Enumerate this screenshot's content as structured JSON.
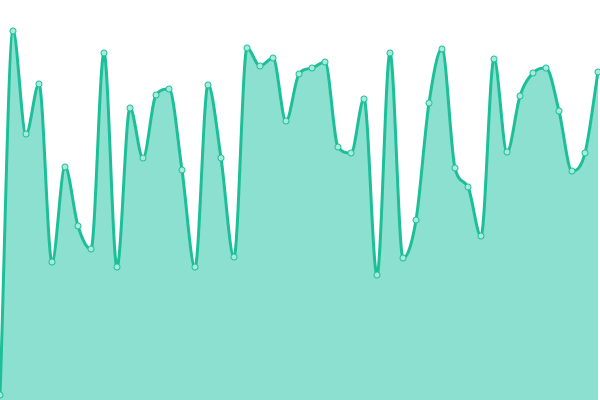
{
  "chart_data": {
    "type": "area",
    "title": "",
    "xlabel": "",
    "ylabel": "",
    "x": [
      0,
      1,
      2,
      3,
      4,
      5,
      6,
      7,
      8,
      9,
      10,
      11,
      12,
      13,
      14,
      15,
      16,
      17,
      18,
      19,
      20,
      21,
      22,
      23,
      24,
      25,
      26,
      27,
      28,
      29,
      30,
      31,
      32,
      33,
      34,
      35,
      36,
      37,
      38,
      39,
      40,
      41,
      42,
      43,
      44,
      45,
      46
    ],
    "values": [
      5,
      369,
      266,
      316,
      138,
      233,
      174,
      151,
      347,
      133,
      292,
      242,
      305,
      311,
      230,
      133,
      315,
      242,
      143,
      352,
      334,
      342,
      279,
      326,
      332,
      338,
      253,
      247,
      301,
      125,
      347,
      142,
      180,
      297,
      351,
      232,
      213,
      164,
      341,
      248,
      304,
      327,
      332,
      289,
      229,
      247,
      328
    ],
    "xlim": [
      0,
      46
    ],
    "ylim": [
      0,
      400
    ],
    "grid": false,
    "axes": false,
    "curve": "smooth",
    "markers": true,
    "colors": {
      "line": "#1dbf98",
      "fill": "#8be0d0",
      "marker_fill": "#a8eadb",
      "marker_stroke": "#1dbf98"
    }
  }
}
